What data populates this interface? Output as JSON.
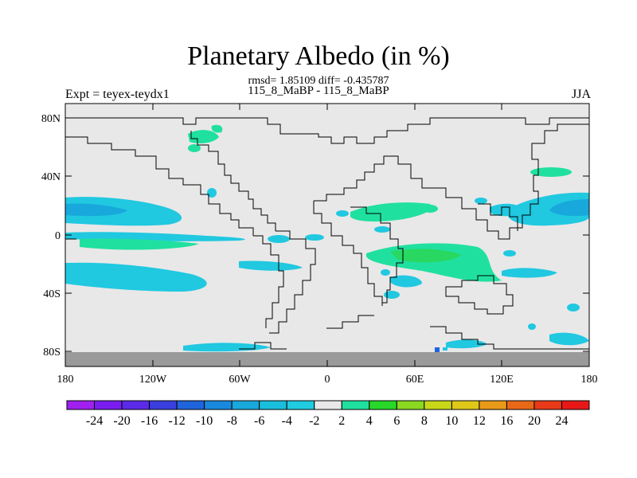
{
  "header": {
    "title": "Planetary Albedo (in %)",
    "stats": "rmsd= 1.85109 diff= -0.435787",
    "comparison": "115_8_MaBP - 115_8_MaBP",
    "experiment": "Expt = teyex-teydx1",
    "season": "JJA"
  },
  "axes": {
    "y_ticks": [
      "80N",
      "40N",
      "0",
      "40S",
      "80S"
    ],
    "x_ticks": [
      "180",
      "120W",
      "60W",
      "0",
      "60E",
      "120E",
      "180"
    ]
  },
  "colorbar": {
    "labels": [
      "-24",
      "-20",
      "-16",
      "-12",
      "-10",
      "-8",
      "-6",
      "-4",
      "-2",
      "2",
      "4",
      "6",
      "8",
      "10",
      "12",
      "16",
      "20",
      "24"
    ],
    "colors": [
      "#a020f0",
      "#7a1df0",
      "#5b2ae8",
      "#3a3fe0",
      "#1f64dc",
      "#1889dc",
      "#18a8dc",
      "#18bedc",
      "#20cce0",
      "#e8e8e8",
      "#20e0a0",
      "#28d828",
      "#8ad820",
      "#c8d818",
      "#e0c818",
      "#e89a18",
      "#e86818",
      "#e83a18",
      "#e81818"
    ]
  },
  "map_colors": {
    "background": "#e8e8e8",
    "missing": "#9a9a9a",
    "neg_light": "#20c8e0",
    "neg_mid": "#18a8dc",
    "pos_light": "#20e0a0",
    "pos_mid": "#28d860"
  }
}
